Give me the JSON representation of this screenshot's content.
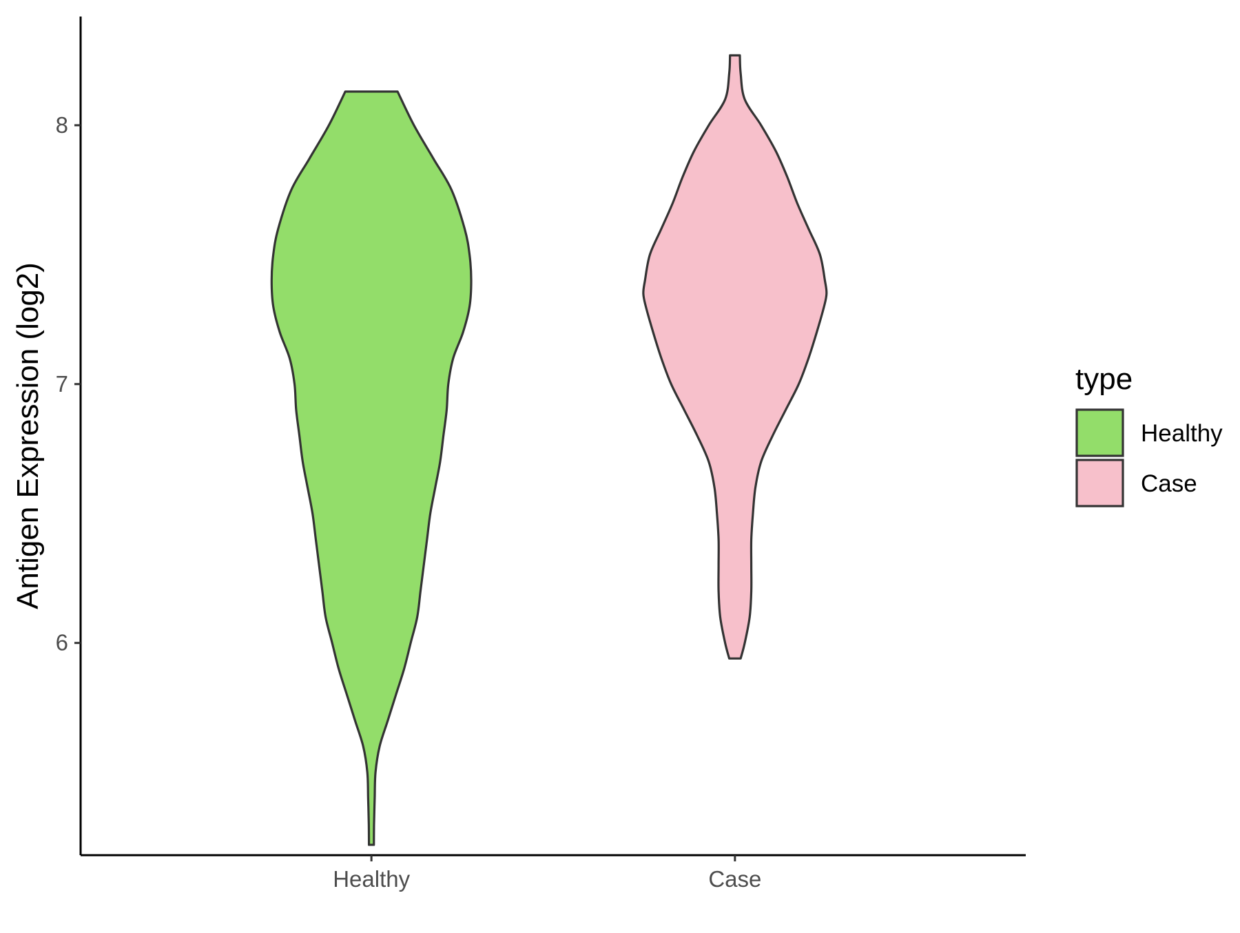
{
  "chart_data": {
    "type": "violin",
    "title": "",
    "xlabel": "",
    "ylabel": "Antigen Expression (log2)",
    "ylim": [
      5.18,
      8.42
    ],
    "yticks": [
      6,
      7,
      8
    ],
    "categories": [
      "Healthy",
      "Case"
    ],
    "legend": {
      "title": "type",
      "position": "right",
      "items": [
        {
          "label": "Healthy",
          "color": "#93dd6a"
        },
        {
          "label": "Case",
          "color": "#f7c0cb"
        }
      ]
    },
    "outline_color": "#333333",
    "violins": [
      {
        "name": "Healthy",
        "color": "#93dd6a",
        "min": 5.22,
        "max": 8.13,
        "profile": [
          [
            8.13,
            0.16
          ],
          [
            8.0,
            0.26
          ],
          [
            7.87,
            0.38
          ],
          [
            7.75,
            0.49
          ],
          [
            7.6,
            0.57
          ],
          [
            7.5,
            0.6
          ],
          [
            7.4,
            0.61
          ],
          [
            7.3,
            0.6
          ],
          [
            7.2,
            0.56
          ],
          [
            7.1,
            0.5
          ],
          [
            7.0,
            0.47
          ],
          [
            6.9,
            0.46
          ],
          [
            6.8,
            0.44
          ],
          [
            6.7,
            0.42
          ],
          [
            6.6,
            0.39
          ],
          [
            6.5,
            0.36
          ],
          [
            6.4,
            0.34
          ],
          [
            6.3,
            0.32
          ],
          [
            6.2,
            0.3
          ],
          [
            6.1,
            0.28
          ],
          [
            6.0,
            0.24
          ],
          [
            5.9,
            0.2
          ],
          [
            5.8,
            0.15
          ],
          [
            5.7,
            0.1
          ],
          [
            5.6,
            0.05
          ],
          [
            5.5,
            0.025
          ],
          [
            5.4,
            0.02
          ],
          [
            5.3,
            0.016
          ],
          [
            5.22,
            0.015
          ]
        ]
      },
      {
        "name": "Case",
        "color": "#f7c0cb",
        "min": 5.94,
        "max": 8.27,
        "profile": [
          [
            8.27,
            0.03
          ],
          [
            8.2,
            0.035
          ],
          [
            8.1,
            0.06
          ],
          [
            8.0,
            0.16
          ],
          [
            7.9,
            0.25
          ],
          [
            7.8,
            0.32
          ],
          [
            7.7,
            0.38
          ],
          [
            7.6,
            0.45
          ],
          [
            7.5,
            0.52
          ],
          [
            7.4,
            0.55
          ],
          [
            7.35,
            0.56
          ],
          [
            7.3,
            0.545
          ],
          [
            7.2,
            0.5
          ],
          [
            7.1,
            0.45
          ],
          [
            7.0,
            0.39
          ],
          [
            6.9,
            0.31
          ],
          [
            6.8,
            0.23
          ],
          [
            6.7,
            0.16
          ],
          [
            6.6,
            0.125
          ],
          [
            6.5,
            0.11
          ],
          [
            6.4,
            0.1
          ],
          [
            6.3,
            0.1
          ],
          [
            6.2,
            0.1
          ],
          [
            6.1,
            0.09
          ],
          [
            6.0,
            0.06
          ],
          [
            5.94,
            0.035
          ]
        ]
      }
    ]
  }
}
